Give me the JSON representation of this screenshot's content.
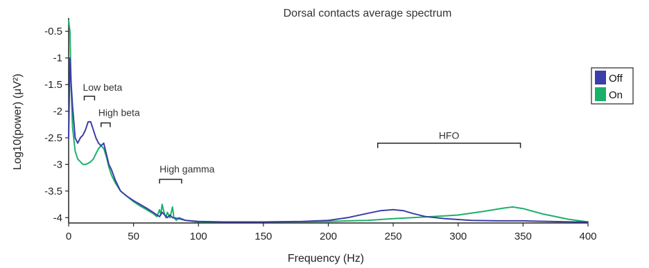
{
  "chart_data": {
    "type": "line",
    "title": "Dorsal contacts average spectrum",
    "xlabel": "Frequency (Hz)",
    "ylabel": "Log10(power) (μV²)",
    "xlim": [
      0,
      400
    ],
    "ylim": [
      -4.1,
      -0.25
    ],
    "xticks": [
      0,
      50,
      100,
      150,
      200,
      250,
      300,
      350,
      400
    ],
    "yticks": [
      -4,
      -3.5,
      -3,
      -2.5,
      -2,
      -1.5,
      -1,
      -0.5
    ],
    "xtick_labels": [
      "0",
      "50",
      "100",
      "150",
      "200",
      "250",
      "300",
      "350",
      "400"
    ],
    "ytick_labels": [
      "-4",
      "-3.5",
      "-3",
      "-2.5",
      "-2",
      "-1.5",
      "-1",
      "-0.5"
    ],
    "grid": false,
    "legend": {
      "placement": "right",
      "entries": [
        "Off",
        "On"
      ]
    },
    "colors": {
      "Off": "#3b3da8",
      "On": "#1bb06a"
    },
    "series": [
      {
        "name": "Off",
        "color": "#3b3da8",
        "x": [
          0,
          1,
          2,
          3,
          5,
          7,
          9,
          11,
          13,
          15,
          17,
          19,
          21,
          23,
          25,
          27,
          29,
          31,
          33,
          36,
          40,
          45,
          50,
          55,
          60,
          65,
          68,
          70,
          72,
          74,
          76,
          78,
          80,
          85,
          90,
          100,
          120,
          150,
          180,
          200,
          215,
          230,
          240,
          250,
          258,
          265,
          275,
          290,
          310,
          330,
          350,
          370,
          390,
          400
        ],
        "y": [
          -2.5,
          -1.0,
          -1.5,
          -1.9,
          -2.5,
          -2.6,
          -2.5,
          -2.45,
          -2.35,
          -2.2,
          -2.2,
          -2.35,
          -2.5,
          -2.6,
          -2.65,
          -2.6,
          -2.8,
          -3.0,
          -3.1,
          -3.3,
          -3.5,
          -3.6,
          -3.68,
          -3.75,
          -3.82,
          -3.9,
          -3.95,
          -3.98,
          -3.9,
          -3.95,
          -4.0,
          -3.95,
          -4.0,
          -4.02,
          -4.05,
          -4.07,
          -4.08,
          -4.08,
          -4.07,
          -4.05,
          -4.0,
          -3.92,
          -3.87,
          -3.85,
          -3.87,
          -3.92,
          -3.98,
          -4.02,
          -4.05,
          -4.06,
          -4.06,
          -4.07,
          -4.08,
          -4.08
        ]
      },
      {
        "name": "On",
        "color": "#1bb06a",
        "x": [
          0,
          1,
          2,
          3,
          5,
          7,
          9,
          11,
          13,
          15,
          17,
          19,
          21,
          23,
          25,
          27,
          29,
          31,
          33,
          36,
          40,
          45,
          50,
          55,
          60,
          65,
          68,
          70,
          71,
          72,
          74,
          75,
          76,
          78,
          80,
          81,
          83,
          85,
          90,
          100,
          120,
          150,
          200,
          230,
          250,
          265,
          280,
          300,
          320,
          335,
          342,
          350,
          365,
          385,
          400
        ],
        "y": [
          -0.3,
          -0.5,
          -1.6,
          -2.3,
          -2.75,
          -2.9,
          -2.95,
          -3.0,
          -3.0,
          -2.98,
          -2.95,
          -2.9,
          -2.8,
          -2.7,
          -2.65,
          -2.7,
          -2.85,
          -3.05,
          -3.2,
          -3.35,
          -3.5,
          -3.6,
          -3.7,
          -3.78,
          -3.85,
          -3.92,
          -3.98,
          -3.85,
          -3.95,
          -3.75,
          -3.95,
          -4.0,
          -3.9,
          -4.0,
          -3.8,
          -4.0,
          -4.05,
          -4.0,
          -4.05,
          -4.08,
          -4.08,
          -4.08,
          -4.07,
          -4.05,
          -4.02,
          -4.0,
          -3.98,
          -3.95,
          -3.88,
          -3.82,
          -3.8,
          -3.83,
          -3.93,
          -4.03,
          -4.08
        ]
      }
    ],
    "annotations": [
      {
        "label": "Low beta",
        "range": [
          12,
          20
        ]
      },
      {
        "label": "High beta",
        "range": [
          25,
          32
        ]
      },
      {
        "label": "High gamma",
        "range": [
          70,
          87
        ]
      },
      {
        "label": "HFO",
        "range": [
          238,
          348
        ]
      }
    ]
  }
}
